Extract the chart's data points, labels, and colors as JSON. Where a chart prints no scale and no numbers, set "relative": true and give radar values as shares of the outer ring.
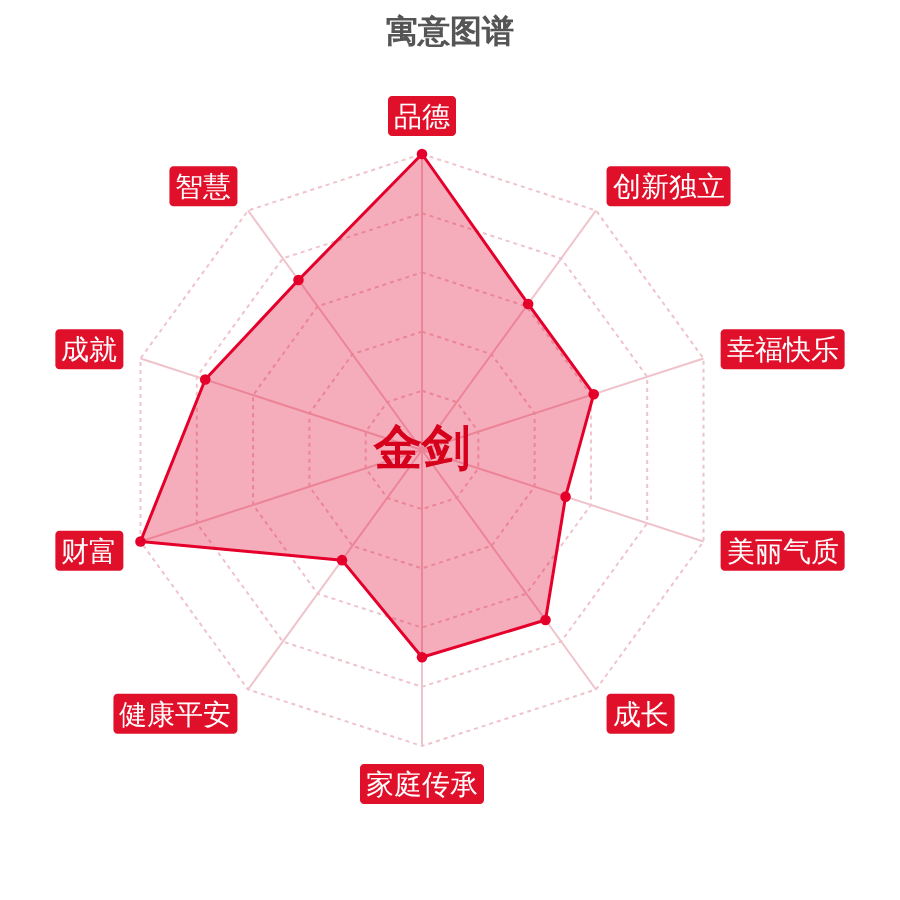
{
  "chart_data": {
    "type": "radar",
    "title": "寓意图谱",
    "annotations": [
      "金剑"
    ],
    "categories": [
      "品德",
      "创新独立",
      "幸福快乐",
      "美丽气质",
      "成长",
      "家庭传承",
      "健康平安",
      "财富",
      "成就",
      "智慧"
    ],
    "relative": true,
    "series": [
      {
        "color": "#e4002b",
        "values": [
          1.0,
          0.61,
          0.61,
          0.51,
          0.71,
          0.7,
          0.46,
          1.0,
          0.77,
          0.71
        ]
      }
    ],
    "grid": true,
    "marker": "circle"
  }
}
